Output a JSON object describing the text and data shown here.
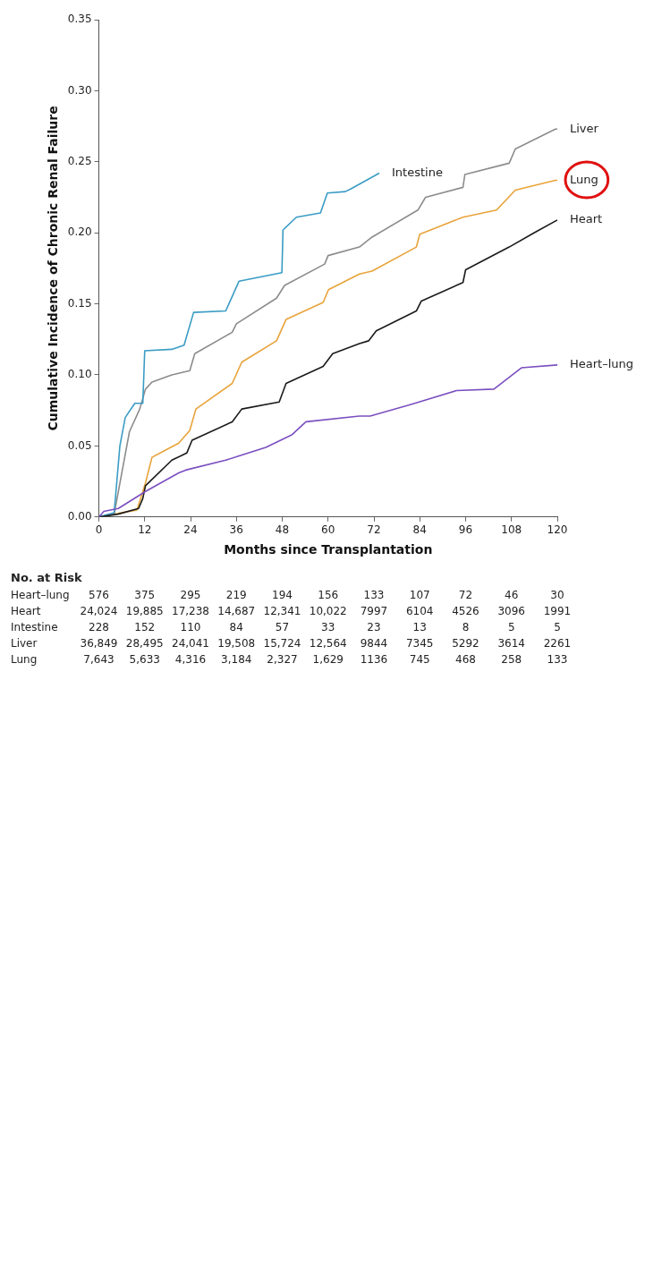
{
  "chart_data": {
    "type": "line",
    "xlabel": "Months since Transplantation",
    "ylabel": "Cumulative Incidence of Chronic Renal Failure",
    "xlim": [
      0,
      120
    ],
    "xticks": [
      0,
      12,
      24,
      36,
      48,
      60,
      72,
      84,
      96,
      108,
      120
    ],
    "ylim": [
      0,
      0.35
    ],
    "yticks": [
      {
        "value": 0,
        "label": "0.00"
      },
      0.05,
      {
        "value": 0.1,
        "label": "0.10"
      },
      0.15,
      {
        "value": 0.2,
        "label": "0.20"
      },
      0.25,
      {
        "value": 0.3,
        "label": "0.30"
      },
      0.35
    ],
    "grid": false,
    "legend": false,
    "marker": "none",
    "line_style": "solid",
    "series": [
      {
        "name": "Heart–lung",
        "color": "#7b4fc0",
        "x": [
          0,
          1.3,
          5.1,
          12.2,
          20.9,
          22.7,
          33.2,
          43.7,
          50.6,
          54.2,
          68.2,
          71,
          81.5,
          93.6,
          103.4,
          110.6,
          120
        ],
        "values": [
          0,
          0.004,
          0.006,
          0.018,
          0.031,
          0.033,
          0.04,
          0.049,
          0.058,
          0.067,
          0.071,
          0.071,
          0.079,
          0.089,
          0.09,
          0.105,
          0.107
        ]
      },
      {
        "name": "Heart",
        "color": "#1a1a1a",
        "x": [
          0,
          5,
          10.4,
          11.5,
          12.2,
          19.1,
          23,
          24.4,
          34.9,
          37.4,
          47.2,
          49,
          58.7,
          61.2,
          68.2,
          70.6,
          72.6,
          83.1,
          84.4,
          95.3,
          96,
          107.4,
          113.9,
          120
        ],
        "values": [
          0,
          0.002,
          0.006,
          0.013,
          0.022,
          0.04,
          0.045,
          0.054,
          0.067,
          0.076,
          0.081,
          0.094,
          0.106,
          0.115,
          0.122,
          0.124,
          0.131,
          0.145,
          0.152,
          0.165,
          0.174,
          0.19,
          0.2,
          0.209
        ]
      },
      {
        "name": "Intestine",
        "color": "#3a9cc4",
        "x": [
          0,
          4,
          5.5,
          6.9,
          9.4,
          11.5,
          12,
          19.1,
          22.3,
          24.8,
          33.2,
          36.7,
          47.9,
          48.2,
          51.7,
          58,
          59.8,
          64.5,
          66,
          73.4
        ],
        "values": [
          0,
          0.003,
          0.05,
          0.07,
          0.08,
          0.08,
          0.117,
          0.118,
          0.121,
          0.144,
          0.145,
          0.166,
          0.172,
          0.202,
          0.211,
          0.214,
          0.228,
          0.229,
          0.231,
          0.242
        ]
      },
      {
        "name": "Liver",
        "color": "#8c8c8c",
        "x": [
          0,
          4,
          8,
          10.7,
          12.2,
          13.9,
          19.1,
          23.8,
          25.1,
          34.9,
          36,
          46.5,
          48.6,
          59.1,
          60,
          68.2,
          71.5,
          83.5,
          85.5,
          95.3,
          95.8,
          107.4,
          109,
          119.5,
          120
        ],
        "values": [
          0,
          0.002,
          0.06,
          0.076,
          0.09,
          0.095,
          0.1,
          0.103,
          0.115,
          0.13,
          0.136,
          0.154,
          0.163,
          0.178,
          0.184,
          0.19,
          0.197,
          0.216,
          0.225,
          0.232,
          0.241,
          0.249,
          0.259,
          0.273,
          0.273
        ]
      },
      {
        "name": "Lung",
        "color": "#e8a33a",
        "x": [
          0,
          10,
          12.2,
          13.9,
          20.9,
          23.8,
          25.4,
          34.9,
          37.4,
          46.5,
          49,
          58.7,
          60.1,
          68.2,
          71.5,
          83.1,
          84,
          95.3,
          104.1,
          109,
          119.5,
          120
        ],
        "values": [
          0,
          0.005,
          0.024,
          0.042,
          0.052,
          0.061,
          0.076,
          0.094,
          0.109,
          0.124,
          0.139,
          0.151,
          0.16,
          0.171,
          0.173,
          0.19,
          0.199,
          0.211,
          0.216,
          0.23,
          0.237,
          0.237
        ]
      }
    ],
    "annotations": [
      "No. at Risk",
      "Heart–lung 576 375 295 219 194 156 133 107 72 46 30",
      "Heart 24,024 19,885 17,238 14,687 12,341 10,022 7997 6104 4526 3096 1991",
      "Intestine 228 152 110 84 57 33 23 13 8 5 5",
      "Liver 36,849 28,495 24,041 19,508 15,724 12,564 9844 7345 5292 3614 2261",
      "Lung 7,643 5,633 4,316 3,184 2,327 1,629 1136 745 468 258 133"
    ]
  }
}
